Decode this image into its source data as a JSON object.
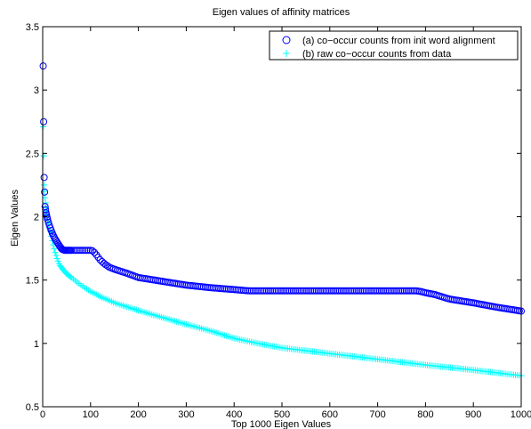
{
  "chart_data": {
    "type": "scatter",
    "title": "Eigen values of affinity matrices",
    "xlabel": "Top 1000 Eigen Values",
    "ylabel": "Eigen Values",
    "xlim": [
      0,
      1000
    ],
    "ylim": [
      0.5,
      3.5
    ],
    "xticks": [
      0,
      100,
      200,
      300,
      400,
      500,
      600,
      700,
      800,
      900,
      1000
    ],
    "yticks": [
      0.5,
      1,
      1.5,
      2,
      2.5,
      3,
      3.5
    ],
    "xtick_labels": [
      "0",
      "100",
      "200",
      "300",
      "400",
      "500",
      "600",
      "700",
      "800",
      "900",
      "1000"
    ],
    "ytick_labels": [
      "0.5",
      "1",
      "1.5",
      "2",
      "2.5",
      "3",
      "3.5"
    ],
    "grid": false,
    "legend_position": "top-right",
    "series": [
      {
        "name": "(a) co−occur counts from init word alignment",
        "marker": "circle",
        "color": "#0000ff",
        "curve": [
          [
            1,
            3.19
          ],
          [
            3,
            2.31
          ],
          [
            5,
            2.08
          ],
          [
            7,
            2.03
          ],
          [
            10,
            1.98
          ],
          [
            15,
            1.92
          ],
          [
            20,
            1.87
          ],
          [
            25,
            1.83
          ],
          [
            30,
            1.8
          ],
          [
            35,
            1.77
          ],
          [
            40,
            1.745
          ],
          [
            45,
            1.735
          ],
          [
            50,
            1.735
          ],
          [
            60,
            1.735
          ],
          [
            80,
            1.735
          ],
          [
            100,
            1.735
          ],
          [
            105,
            1.73
          ],
          [
            110,
            1.71
          ],
          [
            120,
            1.66
          ],
          [
            130,
            1.625
          ],
          [
            140,
            1.6
          ],
          [
            150,
            1.585
          ],
          [
            175,
            1.555
          ],
          [
            200,
            1.52
          ],
          [
            250,
            1.49
          ],
          [
            300,
            1.46
          ],
          [
            350,
            1.44
          ],
          [
            400,
            1.425
          ],
          [
            430,
            1.415
          ],
          [
            450,
            1.415
          ],
          [
            500,
            1.415
          ],
          [
            600,
            1.415
          ],
          [
            700,
            1.415
          ],
          [
            780,
            1.415
          ],
          [
            790,
            1.41
          ],
          [
            800,
            1.4
          ],
          [
            820,
            1.385
          ],
          [
            850,
            1.35
          ],
          [
            900,
            1.32
          ],
          [
            950,
            1.285
          ],
          [
            1000,
            1.255
          ]
        ]
      },
      {
        "name": "(b) raw co−occur counts from data",
        "marker": "plus",
        "color": "#00ffff",
        "curve": [
          [
            1,
            2.71
          ],
          [
            3,
            2.25
          ],
          [
            5,
            2.15
          ],
          [
            7,
            2.07
          ],
          [
            10,
            1.98
          ],
          [
            15,
            1.9
          ],
          [
            20,
            1.81
          ],
          [
            25,
            1.73
          ],
          [
            30,
            1.67
          ],
          [
            35,
            1.62
          ],
          [
            40,
            1.595
          ],
          [
            50,
            1.55
          ],
          [
            60,
            1.52
          ],
          [
            80,
            1.46
          ],
          [
            100,
            1.41
          ],
          [
            120,
            1.37
          ],
          [
            150,
            1.32
          ],
          [
            200,
            1.26
          ],
          [
            250,
            1.205
          ],
          [
            300,
            1.15
          ],
          [
            350,
            1.1
          ],
          [
            400,
            1.04
          ],
          [
            450,
            1.0
          ],
          [
            500,
            0.965
          ],
          [
            600,
            0.92
          ],
          [
            700,
            0.875
          ],
          [
            800,
            0.83
          ],
          [
            900,
            0.79
          ],
          [
            1000,
            0.745
          ]
        ]
      }
    ]
  }
}
